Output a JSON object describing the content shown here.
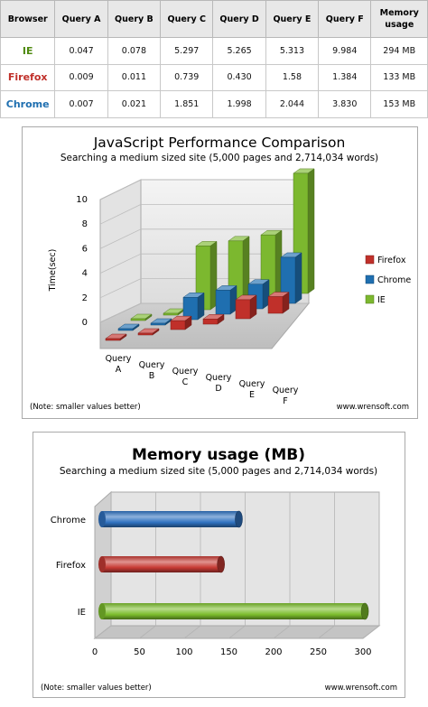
{
  "table": {
    "headers": [
      "Browser",
      "Query A",
      "Query B",
      "Query C",
      "Query D",
      "Query E",
      "Query F",
      "Memory usage"
    ],
    "rows": [
      {
        "browser": "IE",
        "color": "#4f8a10",
        "cells": [
          "0.047",
          "0.078",
          "5.297",
          "5.265",
          "5.313",
          "9.984",
          "294 MB"
        ]
      },
      {
        "browser": "Firefox",
        "color": "#c0302a",
        "cells": [
          "0.009",
          "0.011",
          "0.739",
          "0.430",
          "1.58",
          "1.384",
          "133 MB"
        ]
      },
      {
        "browser": "Chrome",
        "color": "#1f6fb0",
        "cells": [
          "0.007",
          "0.021",
          "1.851",
          "1.998",
          "2.044",
          "3.830",
          "153 MB"
        ]
      }
    ]
  },
  "chart_data": [
    {
      "type": "bar",
      "title": "JavaScript Performance Comparison",
      "subtitle": "Searching a medium sized site (5,000 pages and 2,714,034 words)",
      "ylabel": "Time(sec)",
      "ylim": [
        0,
        10
      ],
      "yticks": [
        0,
        2,
        4,
        6,
        8,
        10
      ],
      "categories": [
        [
          "Query",
          "A"
        ],
        [
          "Query",
          "B"
        ],
        [
          "Query",
          "C"
        ],
        [
          "Query",
          "D"
        ],
        [
          "Query",
          "E"
        ],
        [
          "Query",
          "F"
        ]
      ],
      "series": [
        {
          "name": "Firefox",
          "color": "#c0302a",
          "values": [
            0.009,
            0.011,
            0.739,
            0.43,
            1.58,
            1.384
          ]
        },
        {
          "name": "Chrome",
          "color": "#1f6fb0",
          "values": [
            0.007,
            0.021,
            1.851,
            1.998,
            2.044,
            3.83
          ]
        },
        {
          "name": "IE",
          "color": "#7cb82f",
          "values": [
            0.047,
            0.078,
            5.297,
            5.265,
            5.313,
            9.984
          ]
        }
      ],
      "note": "(Note: smaller values better)",
      "credit": "www.wrensoft.com",
      "legend": "right",
      "style": "3d"
    },
    {
      "type": "bar",
      "orientation": "horizontal",
      "title": "Memory usage (MB)",
      "subtitle": "Searching a medium sized site (5,000 pages and 2,714,034 words)",
      "categories": [
        "Chrome",
        "Firefox",
        "IE"
      ],
      "values": [
        153,
        133,
        294
      ],
      "colors": [
        "#2f72c0",
        "#c73b34",
        "#7cbd2c"
      ],
      "xlim": [
        0,
        300
      ],
      "xticks": [
        0,
        50,
        100,
        150,
        200,
        250,
        300
      ],
      "note": "(Note: smaller values better)",
      "credit": "www.wrensoft.com",
      "grid": true,
      "style": "3d-cylinder"
    }
  ]
}
